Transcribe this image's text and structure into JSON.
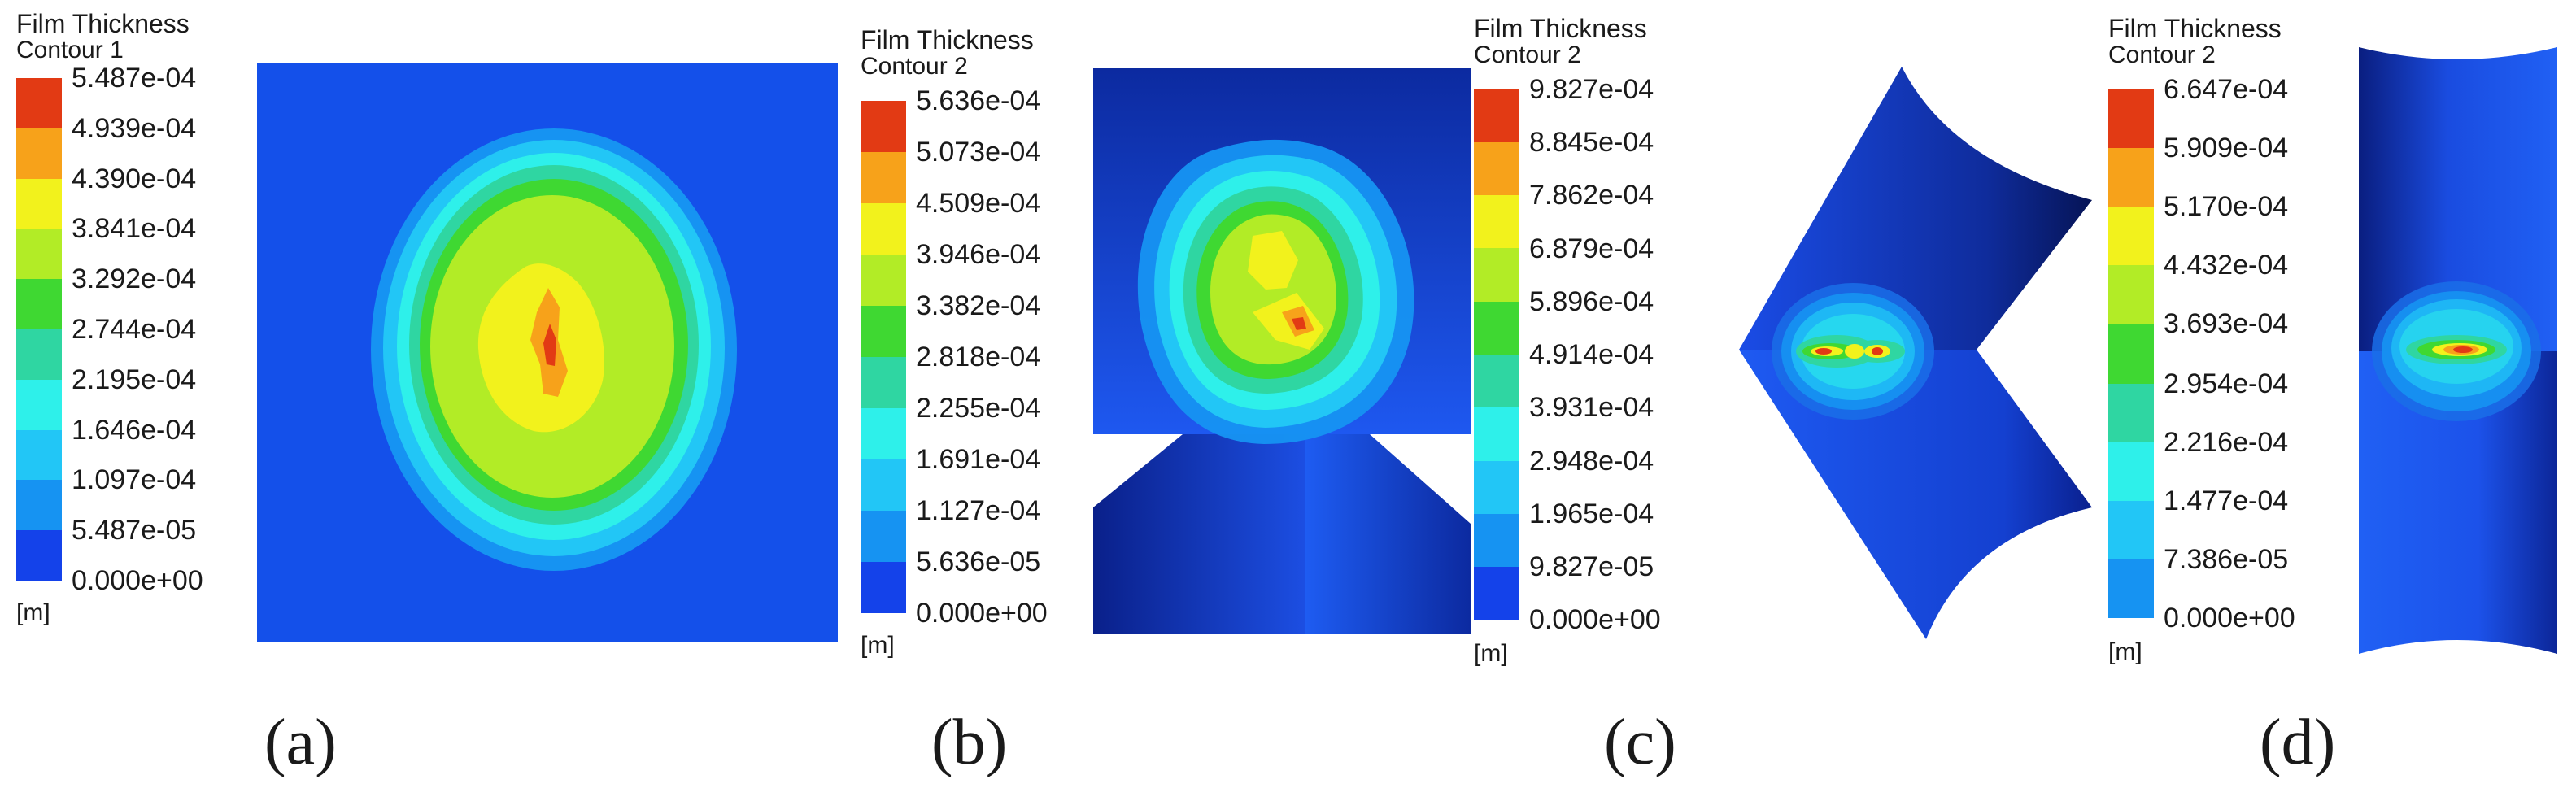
{
  "panels": [
    {
      "id": "a",
      "caption": "(a)",
      "legend": {
        "title": "Film Thickness",
        "subtitle": "Contour 1",
        "unit": "[m]",
        "ticks": [
          "5.487e-04",
          "4.939e-04",
          "4.390e-04",
          "3.841e-04",
          "3.292e-04",
          "2.744e-04",
          "2.195e-04",
          "1.646e-04",
          "1.097e-04",
          "5.487e-05",
          "0.000e+00"
        ]
      }
    },
    {
      "id": "b",
      "caption": "(b)",
      "legend": {
        "title": "Film Thickness",
        "subtitle": "Contour 2",
        "unit": "[m]",
        "ticks": [
          "5.636e-04",
          "5.073e-04",
          "4.509e-04",
          "3.946e-04",
          "3.382e-04",
          "2.818e-04",
          "2.255e-04",
          "1.691e-04",
          "1.127e-04",
          "5.636e-05",
          "0.000e+00"
        ]
      }
    },
    {
      "id": "c",
      "caption": "(c)",
      "legend": {
        "title": "Film Thickness",
        "subtitle": "Contour 2",
        "unit": "[m]",
        "ticks": [
          "9.827e-04",
          "8.845e-04",
          "7.862e-04",
          "6.879e-04",
          "5.896e-04",
          "4.914e-04",
          "3.931e-04",
          "2.948e-04",
          "1.965e-04",
          "9.827e-05",
          "0.000e+00"
        ]
      }
    },
    {
      "id": "d",
      "caption": "(d)",
      "legend": {
        "title": "Film Thickness",
        "subtitle": "Contour 2",
        "unit": "[m]",
        "ticks": [
          "6.647e-04",
          "5.909e-04",
          "5.170e-04",
          "4.432e-04",
          "3.693e-04",
          "2.954e-04",
          "2.216e-04",
          "1.477e-04",
          "7.386e-05",
          "0.000e+00"
        ]
      }
    }
  ],
  "colormap": [
    "#e23a14",
    "#f7a21a",
    "#f2f21c",
    "#b2ec26",
    "#3fd832",
    "#2fd6a2",
    "#2ef0ea",
    "#22c6f6",
    "#1693f2",
    "#1442ea"
  ]
}
